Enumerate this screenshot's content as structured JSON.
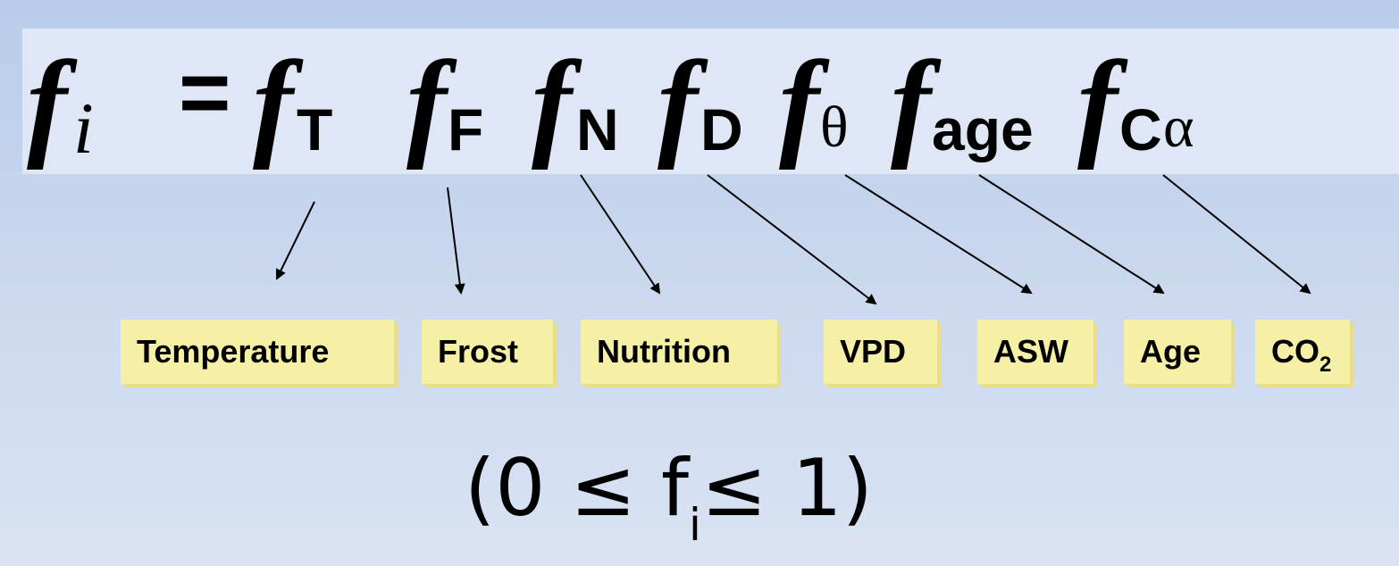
{
  "equation": {
    "lhs_symbol": "f",
    "lhs_subscript": "i",
    "equals": "=",
    "terms": [
      {
        "symbol": "f",
        "subscript": "T"
      },
      {
        "symbol": "f",
        "subscript": "F"
      },
      {
        "symbol": "f",
        "subscript": "N"
      },
      {
        "symbol": "f",
        "subscript": "D"
      },
      {
        "symbol": "f",
        "subscript": "θ"
      },
      {
        "symbol": "f",
        "subscript": "age"
      },
      {
        "symbol": "f",
        "subscript": "C",
        "subscript_greek": "α"
      }
    ]
  },
  "labels": [
    {
      "text": "Temperature"
    },
    {
      "text": "Frost"
    },
    {
      "text": "Nutrition"
    },
    {
      "text": "VPD"
    },
    {
      "text": "ASW"
    },
    {
      "text": "Age"
    },
    {
      "text": "CO",
      "sub": "2"
    }
  ],
  "condition": {
    "open": "(0 ≤ f",
    "sub": "i",
    "close": "≤ 1)"
  },
  "colors": {
    "background_top": "#b9cce9",
    "band": "#dfe7f6",
    "label_fill": "#f6f0a6",
    "label_shadow": "#e9dd86",
    "text": "#000000"
  }
}
